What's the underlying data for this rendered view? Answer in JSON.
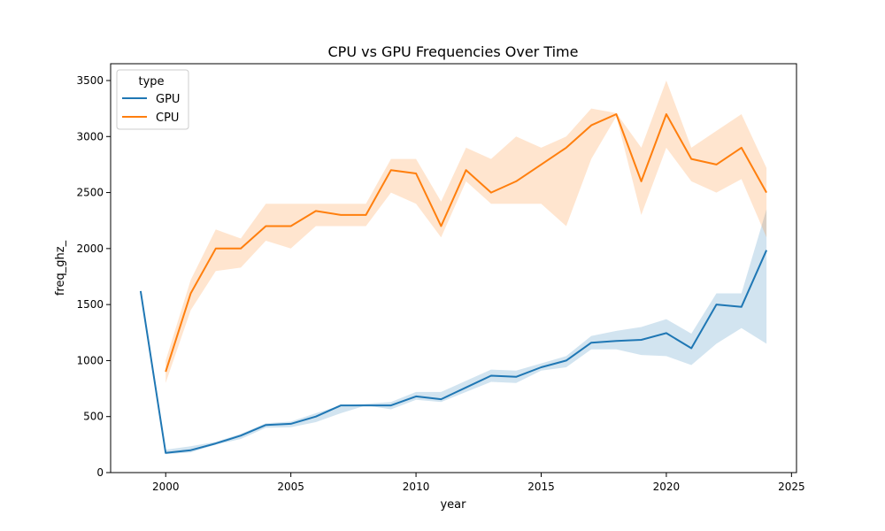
{
  "chart_data": {
    "type": "line",
    "title": "CPU vs GPU Frequencies Over Time",
    "xlabel": "year",
    "ylabel": "freq_ghz_",
    "xlim": [
      1997.8,
      2025.2
    ],
    "ylim": [
      0,
      3650
    ],
    "xticks": [
      2000,
      2005,
      2010,
      2015,
      2020,
      2025
    ],
    "yticks": [
      0,
      500,
      1000,
      1500,
      2000,
      2500,
      3000,
      3500
    ],
    "grid": false,
    "legend": {
      "title": "type",
      "position": "top-left"
    },
    "series": [
      {
        "name": "GPU",
        "color": "#1f77b4",
        "x": [
          1999,
          2000,
          2001,
          2002,
          2003,
          2004,
          2005,
          2006,
          2007,
          2008,
          2009,
          2010,
          2011,
          2012,
          2013,
          2014,
          2015,
          2016,
          2017,
          2018,
          2019,
          2020,
          2021,
          2022,
          2023,
          2024
        ],
        "y": [
          1620,
          175,
          200,
          260,
          330,
          425,
          435,
          500,
          600,
          600,
          600,
          680,
          655,
          760,
          865,
          855,
          940,
          1000,
          1160,
          1175,
          1185,
          1245,
          1110,
          1500,
          1480,
          1985
        ],
        "lower": [
          1620,
          165,
          180,
          250,
          300,
          400,
          405,
          450,
          530,
          600,
          565,
          650,
          630,
          720,
          810,
          800,
          910,
          940,
          1100,
          1100,
          1050,
          1040,
          960,
          1150,
          1290,
          1150
        ],
        "upper": [
          1620,
          205,
          235,
          275,
          345,
          440,
          455,
          530,
          600,
          615,
          630,
          720,
          720,
          820,
          920,
          910,
          975,
          1040,
          1220,
          1265,
          1300,
          1370,
          1240,
          1600,
          1600,
          2350
        ]
      },
      {
        "name": "CPU",
        "color": "#ff7f0e",
        "x": [
          2000,
          2001,
          2002,
          2003,
          2004,
          2005,
          2006,
          2007,
          2008,
          2009,
          2010,
          2011,
          2012,
          2013,
          2014,
          2015,
          2016,
          2017,
          2018,
          2019,
          2020,
          2021,
          2022,
          2023,
          2024
        ],
        "y": [
          900,
          1600,
          2000,
          2000,
          2200,
          2200,
          2335,
          2300,
          2300,
          2700,
          2670,
          2200,
          2700,
          2500,
          2600,
          2750,
          2900,
          3100,
          3200,
          2600,
          3200,
          2800,
          2750,
          2900,
          2500
        ],
        "lower": [
          800,
          1450,
          1800,
          1830,
          2070,
          2000,
          2200,
          2200,
          2200,
          2500,
          2400,
          2100,
          2600,
          2400,
          2400,
          2400,
          2200,
          2800,
          3180,
          2300,
          2900,
          2600,
          2500,
          2620,
          2100
        ],
        "upper": [
          1000,
          1720,
          2170,
          2090,
          2400,
          2400,
          2400,
          2400,
          2400,
          2800,
          2800,
          2420,
          2900,
          2800,
          3000,
          2900,
          3000,
          3250,
          3210,
          2900,
          3500,
          2900,
          3050,
          3200,
          2720
        ]
      }
    ]
  }
}
